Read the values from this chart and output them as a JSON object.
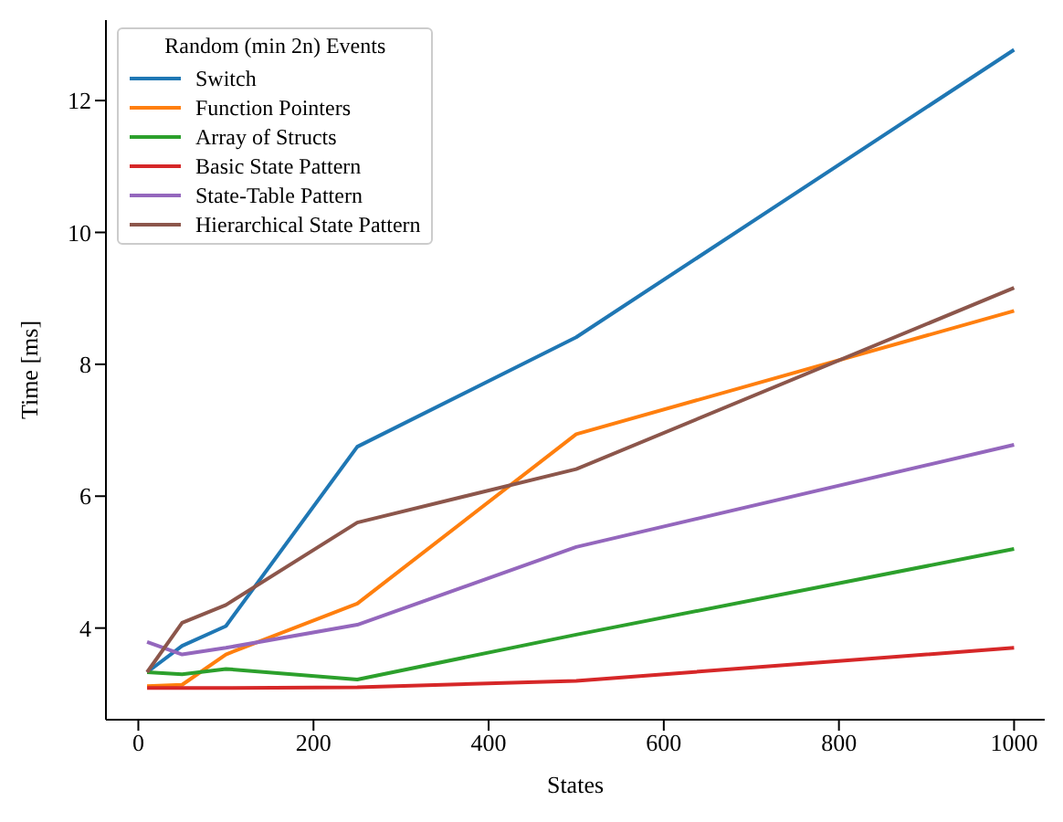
{
  "chart_data": {
    "type": "line",
    "xlabel": "States",
    "ylabel": "Time [ms]",
    "legend_title": "Random (min 2n) Events",
    "x": [
      10,
      50,
      100,
      250,
      500,
      1000
    ],
    "series": [
      {
        "name": "Switch",
        "color": "#1f77b4",
        "values": [
          3.33,
          3.73,
          4.03,
          6.75,
          8.41,
          12.77
        ]
      },
      {
        "name": "Function Pointers",
        "color": "#ff7f0e",
        "values": [
          3.12,
          3.14,
          3.6,
          4.37,
          6.94,
          8.81
        ]
      },
      {
        "name": "Array of Structs",
        "color": "#2ca02c",
        "values": [
          3.33,
          3.3,
          3.38,
          3.22,
          3.9,
          5.2
        ]
      },
      {
        "name": "Basic State Pattern",
        "color": "#d62728",
        "values": [
          3.09,
          3.09,
          3.09,
          3.1,
          3.2,
          3.7
        ]
      },
      {
        "name": "State-Table Pattern",
        "color": "#9467bd",
        "values": [
          3.79,
          3.6,
          3.7,
          4.05,
          5.23,
          6.78
        ]
      },
      {
        "name": "Hierarchical State Pattern",
        "color": "#8c564b",
        "values": [
          3.33,
          4.08,
          4.35,
          5.6,
          6.41,
          9.16
        ]
      }
    ],
    "xlim": [
      -37,
      1035
    ],
    "ylim": [
      2.61,
      13.22
    ],
    "xticks": [
      0,
      200,
      400,
      600,
      800,
      1000
    ],
    "yticks": [
      4,
      6,
      8,
      10,
      12
    ],
    "grid": false,
    "legend": "top left",
    "marker": "none",
    "line_style": "solid"
  }
}
